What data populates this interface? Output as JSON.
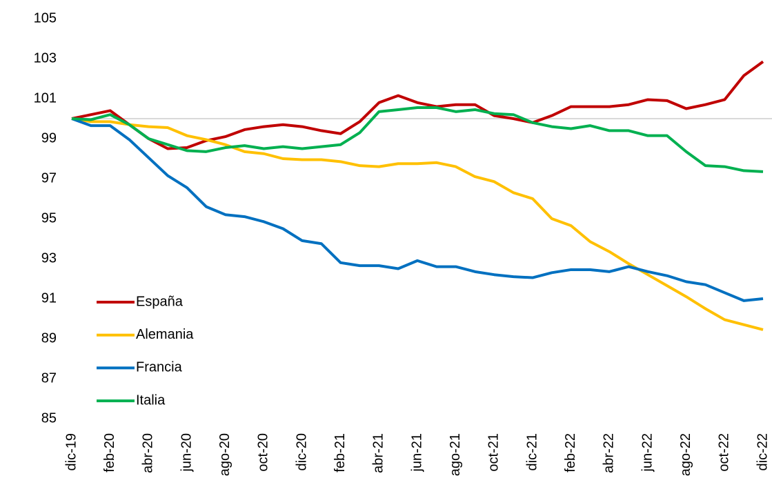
{
  "chart_data": {
    "type": "line",
    "categories": [
      "dic-19",
      null,
      "feb-20",
      null,
      "abr-20",
      null,
      "jun-20",
      null,
      "ago-20",
      null,
      "oct-20",
      null,
      "dic-20",
      null,
      "feb-21",
      null,
      "abr-21",
      null,
      "jun-21",
      null,
      "ago-21",
      null,
      "oct-21",
      null,
      "dic-21",
      null,
      "feb-22",
      null,
      "abr-22",
      null,
      "jun-22",
      null,
      "ago-22",
      null,
      "oct-22",
      null,
      "dic-22"
    ],
    "series": [
      {
        "name": "España",
        "color": "#c00000",
        "values": [
          100,
          100.2,
          100.4,
          99.7,
          99.0,
          98.5,
          98.55,
          98.9,
          99.1,
          99.45,
          99.6,
          99.7,
          99.6,
          99.4,
          99.25,
          99.85,
          100.8,
          101.15,
          100.8,
          100.6,
          100.7,
          100.7,
          100.15,
          100.0,
          99.8,
          100.15,
          100.6,
          100.6,
          100.6,
          100.7,
          100.95,
          100.9,
          100.5,
          100.7,
          100.95,
          102.15,
          102.85
        ]
      },
      {
        "name": "Alemania",
        "color": "#ffc000",
        "values": [
          100,
          99.85,
          99.85,
          99.7,
          99.6,
          99.55,
          99.15,
          98.95,
          98.7,
          98.35,
          98.25,
          98.0,
          97.95,
          97.95,
          97.85,
          97.65,
          97.6,
          97.75,
          97.75,
          97.8,
          97.6,
          97.1,
          96.85,
          96.3,
          96.0,
          95.0,
          94.65,
          93.85,
          93.35,
          92.75,
          92.2,
          91.65,
          91.1,
          90.5,
          89.95,
          89.7,
          89.45
        ]
      },
      {
        "name": "Francia",
        "color": "#0070c0",
        "values": [
          100,
          99.65,
          99.65,
          98.95,
          98.05,
          97.15,
          96.55,
          95.6,
          95.2,
          95.1,
          94.85,
          94.5,
          93.9,
          93.75,
          92.8,
          92.65,
          92.65,
          92.5,
          92.9,
          92.6,
          92.6,
          92.35,
          92.2,
          92.1,
          92.05,
          92.3,
          92.45,
          92.45,
          92.35,
          92.6,
          92.35,
          92.15,
          91.85,
          91.7,
          91.3,
          90.9,
          91.0
        ]
      },
      {
        "name": "Italia",
        "color": "#00b050",
        "values": [
          100,
          99.95,
          100.2,
          99.7,
          99.0,
          98.7,
          98.4,
          98.35,
          98.55,
          98.65,
          98.5,
          98.6,
          98.5,
          98.6,
          98.7,
          99.3,
          100.35,
          100.45,
          100.55,
          100.55,
          100.35,
          100.45,
          100.25,
          100.2,
          99.8,
          99.6,
          99.5,
          99.65,
          99.4,
          99.4,
          99.15,
          99.15,
          98.35,
          97.65,
          97.6,
          97.4,
          97.35
        ]
      }
    ],
    "ylim": [
      85,
      105
    ],
    "yticks": [
      85,
      87,
      89,
      91,
      93,
      95,
      97,
      99,
      101,
      103,
      105
    ],
    "reference_line": 100,
    "grid": false,
    "legend": "lower-left"
  }
}
